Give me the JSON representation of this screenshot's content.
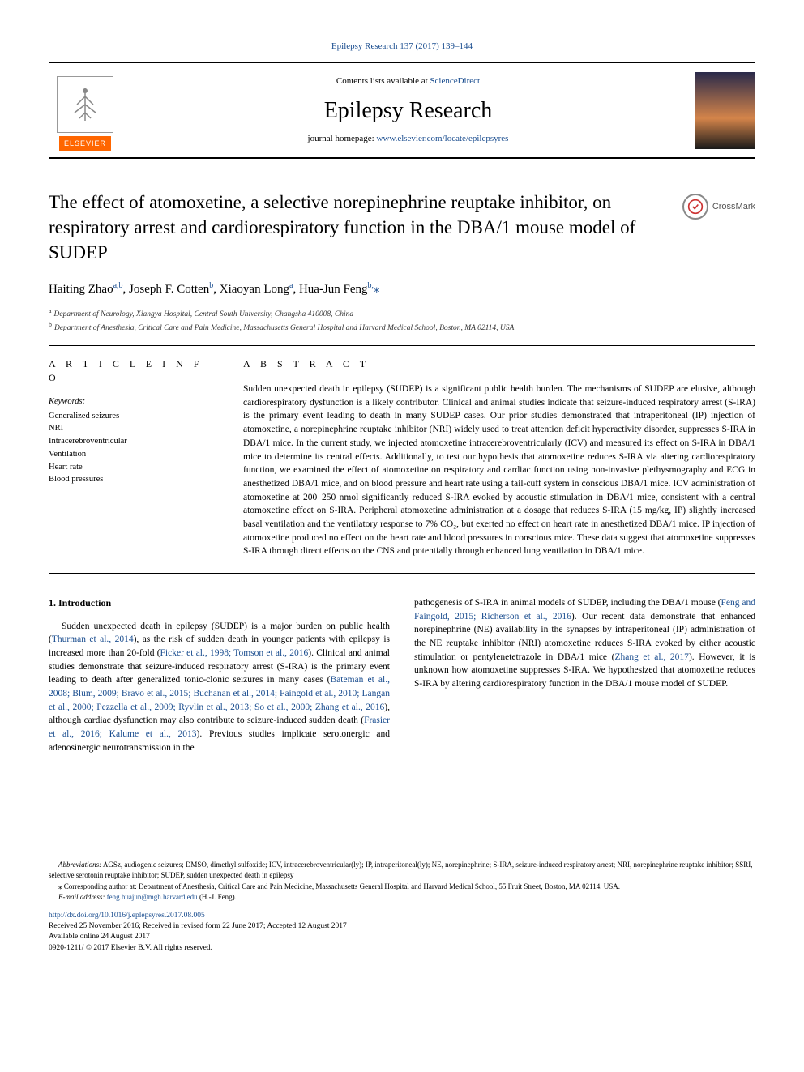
{
  "header": {
    "citation_link": "Epilepsy Research 137 (2017) 139–144",
    "contents_prefix": "Contents lists available at ",
    "contents_link": "ScienceDirect",
    "journal_title": "Epilepsy Research",
    "homepage_prefix": "journal homepage: ",
    "homepage_link": "www.elsevier.com/locate/epilepsyres",
    "elsevier_label": "ELSEVIER",
    "crossmark_label": "CrossMark"
  },
  "article": {
    "title": "The effect of atomoxetine, a selective norepinephrine reuptake inhibitor, on respiratory arrest and cardiorespiratory function in the DBA/1 mouse model of SUDEP",
    "authors_html": "Haiting Zhao<sup>a,b</sup>, Joseph F. Cotten<sup>b</sup>, Xiaoyan Long<sup>a</sup>, Hua-Jun Feng<sup>b,</sup>",
    "corr_marker": "⁎",
    "affiliations": [
      {
        "marker": "a",
        "text": "Department of Neurology, Xiangya Hospital, Central South University, Changsha 410008, China"
      },
      {
        "marker": "b",
        "text": "Department of Anesthesia, Critical Care and Pain Medicine, Massachusetts General Hospital and Harvard Medical School, Boston, MA 02114, USA"
      }
    ]
  },
  "info": {
    "heading": "A R T I C L E  I N F O",
    "keywords_label": "Keywords:",
    "keywords": [
      "Generalized seizures",
      "NRI",
      "Intracerebroventricular",
      "Ventilation",
      "Heart rate",
      "Blood pressures"
    ]
  },
  "abstract": {
    "heading": "A B S T R A C T",
    "text": "Sudden unexpected death in epilepsy (SUDEP) is a significant public health burden. The mechanisms of SUDEP are elusive, although cardiorespiratory dysfunction is a likely contributor. Clinical and animal studies indicate that seizure-induced respiratory arrest (S-IRA) is the primary event leading to death in many SUDEP cases. Our prior studies demonstrated that intraperitoneal (IP) injection of atomoxetine, a norepinephrine reuptake inhibitor (NRI) widely used to treat attention deficit hyperactivity disorder, suppresses S-IRA in DBA/1 mice. In the current study, we injected atomoxetine intracerebroventricularly (ICV) and measured its effect on S-IRA in DBA/1 mice to determine its central effects. Additionally, to test our hypothesis that atomoxetine reduces S-IRA via altering cardiorespiratory function, we examined the effect of atomoxetine on respiratory and cardiac function using non-invasive plethysmography and ECG in anesthetized DBA/1 mice, and on blood pressure and heart rate using a tail-cuff system in conscious DBA/1 mice. ICV administration of atomoxetine at 200–250 nmol significantly reduced S-IRA evoked by acoustic stimulation in DBA/1 mice, consistent with a central atomoxetine effect on S-IRA. Peripheral atomoxetine administration at a dosage that reduces S-IRA (15 mg/kg, IP) slightly increased basal ventilation and the ventilatory response to 7% CO₂, but exerted no effect on heart rate in anesthetized DBA/1 mice. IP injection of atomoxetine produced no effect on the heart rate and blood pressures in conscious mice. These data suggest that atomoxetine suppresses S-IRA through direct effects on the CNS and potentially through enhanced lung ventilation in DBA/1 mice."
  },
  "body": {
    "intro_heading": "1. Introduction",
    "col1_p1_pre": "Sudden unexpected death in epilepsy (SUDEP) is a major burden on public health (",
    "col1_link1": "Thurman et al., 2014",
    "col1_p1_mid1": "), as the risk of sudden death in younger patients with epilepsy is increased more than 20-fold (",
    "col1_link2": "Ficker et al., 1998; Tomson et al., 2016",
    "col1_p1_mid2": "). Clinical and animal studies demonstrate that seizure-induced respiratory arrest (S-IRA) is the primary event leading to death after generalized tonic-clonic seizures in many cases (",
    "col1_link3": "Bateman et al., 2008; Blum, 2009; Bravo et al., 2015; Buchanan et al., 2014; Faingold et al., 2010; Langan et al., 2000; Pezzella et al., 2009; Ryvlin et al., 2013; So et al., 2000; Zhang et al., 2016",
    "col1_p1_mid3": "), although cardiac dysfunction may also contribute to seizure-induced sudden death (",
    "col1_link4": "Frasier et al., 2016; Kalume et al., 2013",
    "col1_p1_end": "). Previous studies implicate serotonergic and adenosinergic neurotransmission in the",
    "col2_pre": "pathogenesis of S-IRA in animal models of SUDEP, including the DBA/1 mouse (",
    "col2_link1": "Feng and Faingold, 2015; Richerson et al., 2016",
    "col2_mid1": "). Our recent data demonstrate that enhanced norepinephrine (NE) availability in the synapses by intraperitoneal (IP) administration of the NE reuptake inhibitor (NRI) atomoxetine reduces S-IRA evoked by either acoustic stimulation or pentylenetetrazole in DBA/1 mice (",
    "col2_link2": "Zhang et al., 2017",
    "col2_end": "). However, it is unknown how atomoxetine suppresses S-IRA. We hypothesized that atomoxetine reduces S-IRA by altering cardiorespiratory function in the DBA/1 mouse model of SUDEP."
  },
  "footnotes": {
    "abbrev_label": "Abbreviations:",
    "abbrev_text": " AGSz, audiogenic seizures; DMSO, dimethyl sulfoxide; ICV, intracerebroventricular(ly); IP, intraperitoneal(ly); NE, norepinephrine; S-IRA, seizure-induced respiratory arrest; NRI, norepinephrine reuptake inhibitor; SSRI, selective serotonin reuptake inhibitor; SUDEP, sudden unexpected death in epilepsy",
    "corr_marker": "⁎",
    "corr_text": " Corresponding author at: Department of Anesthesia, Critical Care and Pain Medicine, Massachusetts General Hospital and Harvard Medical School, 55 Fruit Street, Boston, MA 02114, USA.",
    "email_label": "E-mail address:",
    "email_link": "feng.huajun@mgh.harvard.edu",
    "email_suffix": " (H.-J. Feng).",
    "doi_link": "http://dx.doi.org/10.1016/j.eplepsyres.2017.08.005",
    "received": "Received 25 November 2016; Received in revised form 22 June 2017; Accepted 12 August 2017",
    "available": "Available online 24 August 2017",
    "copyright": "0920-1211/ © 2017 Elsevier B.V. All rights reserved."
  },
  "colors": {
    "link": "#1a4d8f",
    "elsevier_orange": "#ff6600",
    "text": "#000000",
    "rule": "#000000"
  }
}
